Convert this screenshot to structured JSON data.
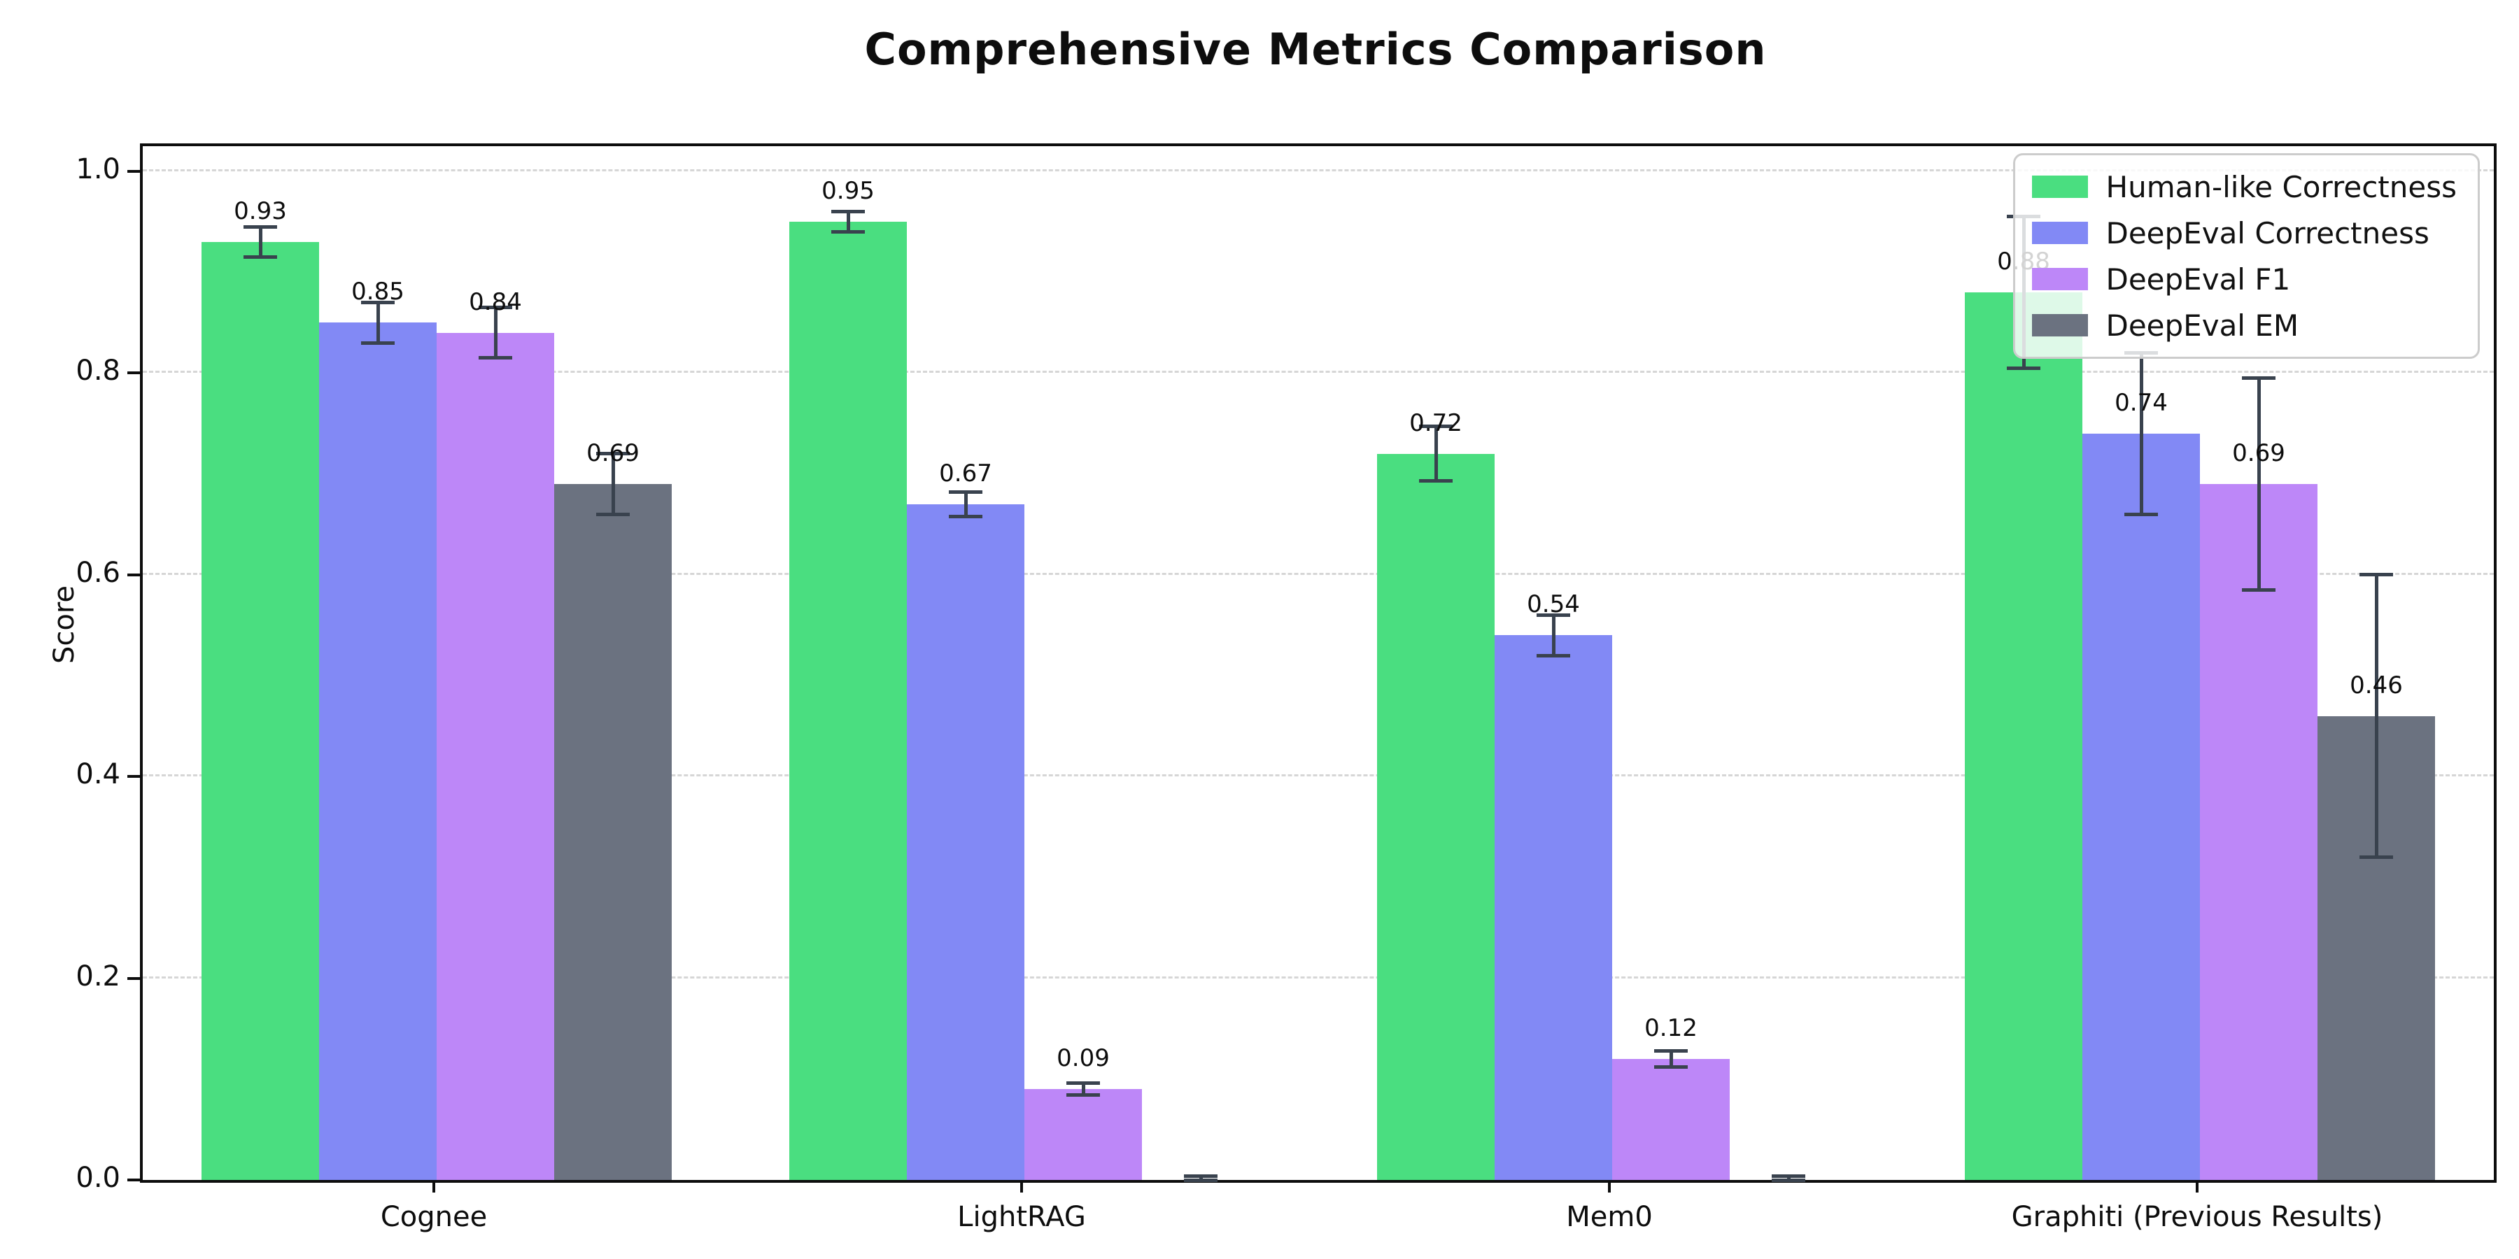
{
  "title": "Comprehensive Metrics Comparison",
  "axes": {
    "ylabel": "Score",
    "ytick_labels": [
      "0.0",
      "0.2",
      "0.4",
      "0.6",
      "0.8",
      "1.0"
    ]
  },
  "chart_data": {
    "type": "bar",
    "title": "Comprehensive Metrics Comparison",
    "xlabel": "",
    "ylabel": "Score",
    "categories": [
      "Cognee",
      "LightRAG",
      "Mem0",
      "Graphiti (Previous Results)"
    ],
    "yticks": [
      0.0,
      0.2,
      0.4,
      0.6,
      0.8,
      1.0
    ],
    "ylim": [
      0,
      1.025
    ],
    "grid": "horizontal-dashed",
    "legend_position": "upper right",
    "background": "#ffffff",
    "error_bar_color": "#39424e",
    "gridline_color": "#d6d6d6",
    "series": [
      {
        "name": "Human-like Correctness",
        "color": "#4ade80",
        "values": [
          0.93,
          0.95,
          0.72,
          0.88
        ],
        "errors": [
          0.015,
          0.01,
          0.027,
          0.075
        ],
        "labels": [
          "0.93",
          "0.95",
          "0.72",
          "0.88"
        ]
      },
      {
        "name": "DeepEval Correctness",
        "color": "#8289f5",
        "values": [
          0.85,
          0.67,
          0.54,
          0.74
        ],
        "errors": [
          0.02,
          0.012,
          0.02,
          0.08
        ],
        "labels": [
          "0.85",
          "0.67",
          "0.54",
          "0.74"
        ]
      },
      {
        "name": "DeepEval F1",
        "color": "#bd87f8",
        "values": [
          0.84,
          0.09,
          0.12,
          0.69
        ],
        "errors": [
          0.025,
          0.006,
          0.008,
          0.105
        ],
        "labels": [
          "0.84",
          "0.09",
          "0.12",
          "0.69"
        ]
      },
      {
        "name": "DeepEval EM",
        "color": "#6b7280",
        "values": [
          0.69,
          0.0,
          0.0,
          0.46
        ],
        "errors": [
          0.03,
          0.004,
          0.004,
          0.14
        ],
        "labels": [
          "0.69",
          null,
          null,
          "0.46"
        ]
      }
    ]
  }
}
